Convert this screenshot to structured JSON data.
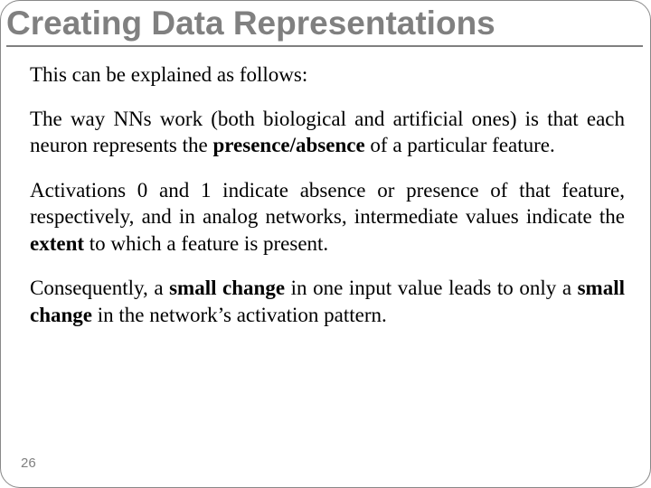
{
  "title": "Creating Data Representations",
  "title_color": "#808080",
  "title_fontsize": 37,
  "underline_color": "#808080",
  "body_fontsize": 23,
  "text_color": "#000000",
  "background_color": "#ffffff",
  "border_color": "#888888",
  "paragraphs": {
    "p1": "This can be explained as follows:",
    "p2_a": "The way NNs work (both biological and artificial ones) is that each neuron represents the ",
    "p2_bold": "presence/absence",
    "p2_b": " of a particular feature.",
    "p3_a": "Activations 0 and 1 indicate absence or presence of that feature, respectively, and in analog networks, intermediate values indicate the ",
    "p3_bold": "extent",
    "p3_b": " to which a feature is present.",
    "p4_a": "Consequently, a ",
    "p4_bold1": "small change",
    "p4_b": " in one input value leads to only a ",
    "p4_bold2": "small change",
    "p4_c": " in the network’s activation pattern."
  },
  "page_number": "26",
  "page_number_color": "#808080"
}
